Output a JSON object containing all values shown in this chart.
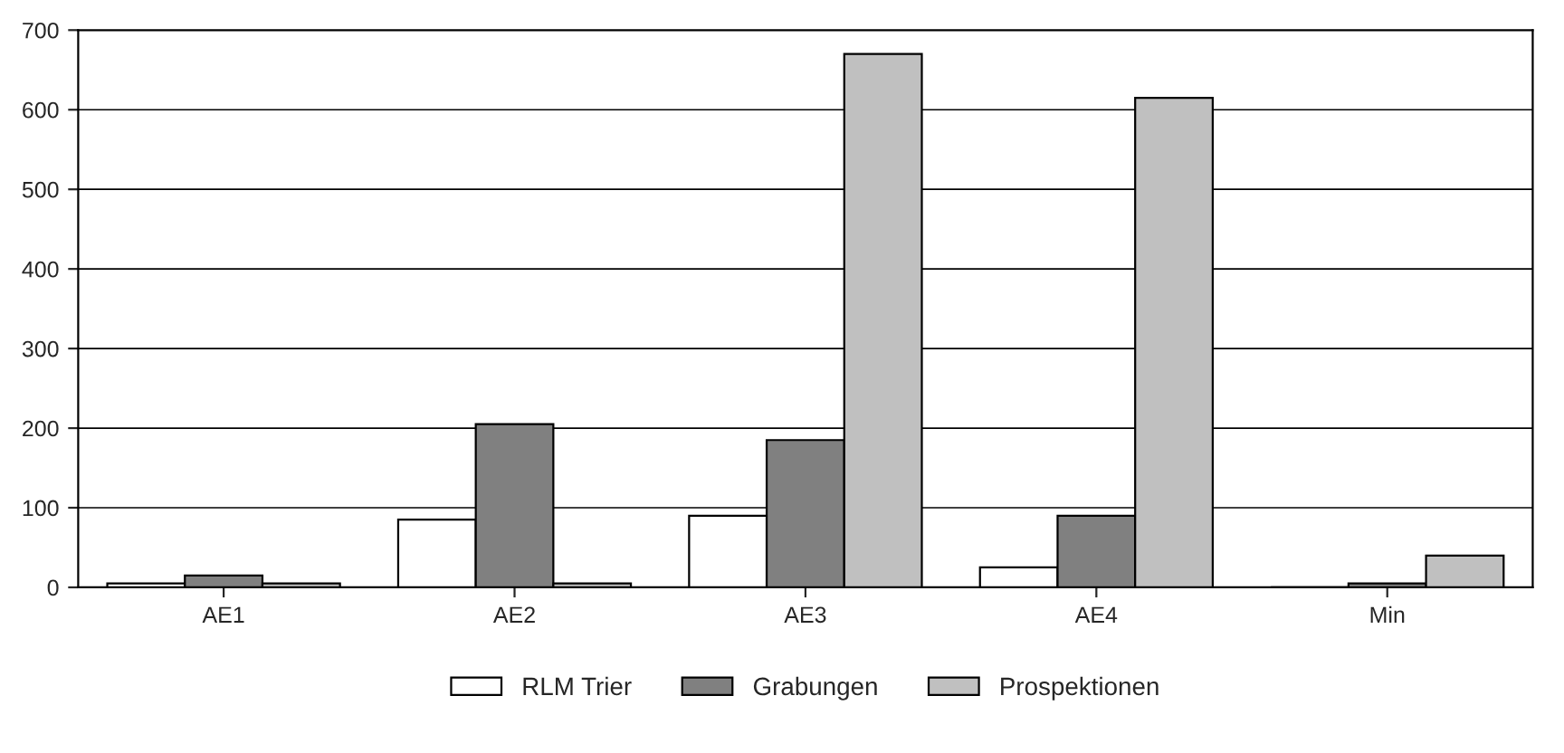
{
  "chart_data": {
    "type": "bar",
    "categories": [
      "AE1",
      "AE2",
      "AE3",
      "AE4",
      "Min"
    ],
    "series": [
      {
        "name": "RLM Trier",
        "color": "#ffffff",
        "values": [
          5,
          85,
          90,
          25,
          0
        ]
      },
      {
        "name": "Grabungen",
        "color": "#808080",
        "values": [
          15,
          205,
          185,
          90,
          5
        ]
      },
      {
        "name": "Prospektionen",
        "color": "#c0c0c0",
        "values": [
          5,
          5,
          670,
          615,
          40
        ]
      }
    ],
    "ylim": [
      0,
      700
    ],
    "yticks": [
      0,
      100,
      200,
      300,
      400,
      500,
      600,
      700
    ],
    "grid": "y",
    "legend": "bottom"
  }
}
